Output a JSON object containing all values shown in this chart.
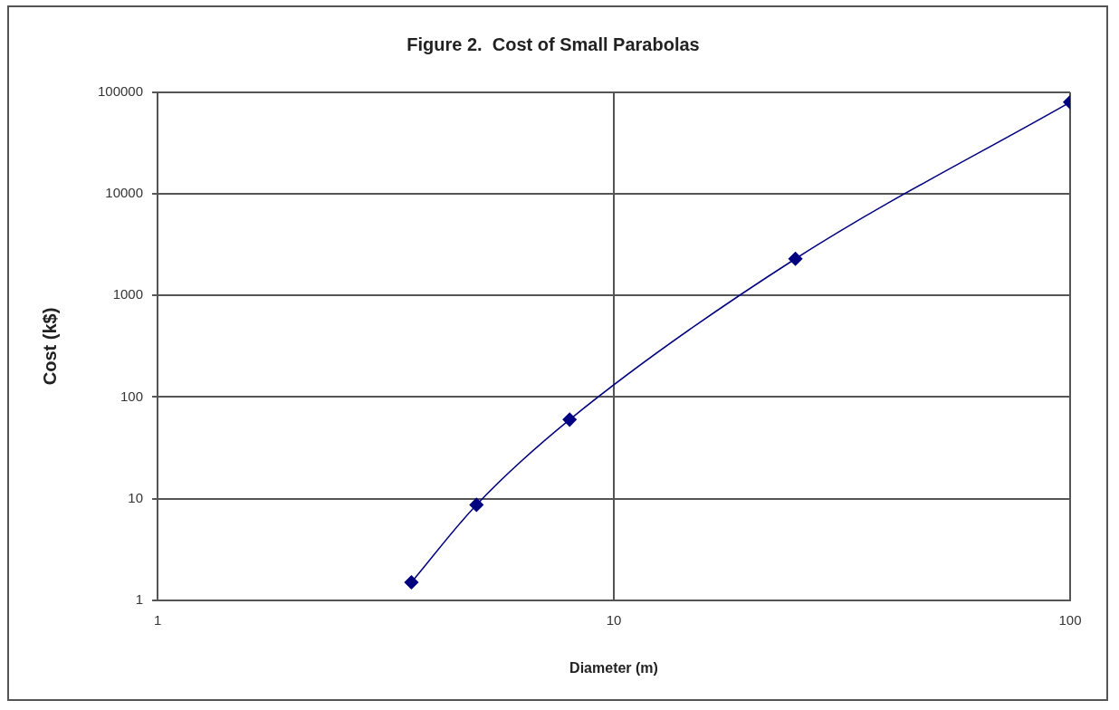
{
  "chart_data": {
    "type": "line",
    "title": "Figure 2.  Cost of Small Parabolas",
    "xlabel": "Diameter (m)",
    "ylabel": "Cost (k$)",
    "x": [
      3.6,
      5,
      8,
      25,
      100
    ],
    "series": [
      {
        "color": "#000080",
        "values": [
          1.5,
          8.7,
          60,
          2300,
          80000
        ]
      }
    ],
    "log": "xy",
    "xlim": [
      1,
      100
    ],
    "xticks": [
      1,
      10,
      100
    ],
    "ylim": [
      1,
      100000
    ],
    "yticks": [
      1,
      10,
      100,
      1000,
      10000,
      100000
    ],
    "grid": true,
    "legend": false,
    "marker": "diamond",
    "line_style": "solid"
  }
}
